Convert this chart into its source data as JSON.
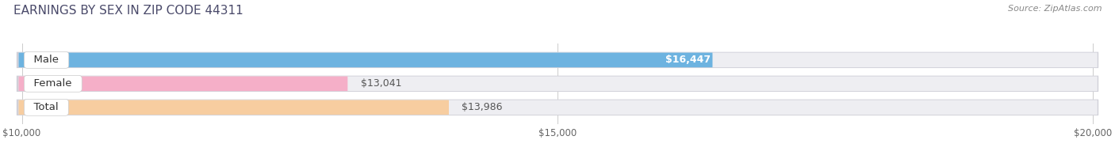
{
  "title": "EARNINGS BY SEX IN ZIP CODE 44311",
  "source": "Source: ZipAtlas.com",
  "categories": [
    "Male",
    "Female",
    "Total"
  ],
  "values": [
    16447,
    13041,
    13986
  ],
  "bar_colors": [
    "#6db3e0",
    "#f5afc8",
    "#f7cda0"
  ],
  "label_colors": [
    "white",
    "#555555",
    "#555555"
  ],
  "label_inside": [
    true,
    false,
    false
  ],
  "bar_bg_color": "#e2e2e6",
  "bar_bg_inner_color": "#f0f0f4",
  "value_labels": [
    "$16,447",
    "$13,041",
    "$13,986"
  ],
  "xlim": [
    10000,
    20000
  ],
  "xticks": [
    10000,
    15000,
    20000
  ],
  "xtick_labels": [
    "$10,000",
    "$15,000",
    "$20,000"
  ],
  "bar_height": 0.62,
  "fig_width": 14.06,
  "fig_height": 1.96,
  "title_fontsize": 11,
  "label_fontsize": 9.5,
  "value_fontsize": 9,
  "source_fontsize": 8,
  "background_color": "#ffffff",
  "title_color": "#4a4a6a",
  "source_color": "#888888"
}
